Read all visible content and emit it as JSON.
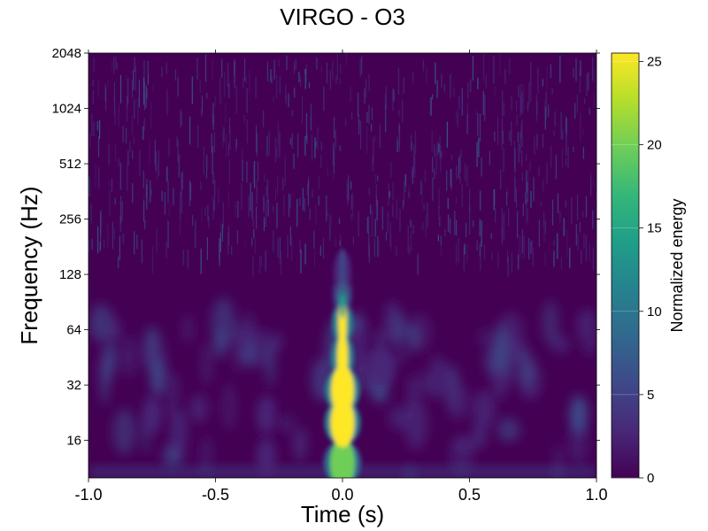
{
  "chart_data": {
    "type": "heatmap",
    "title": "VIRGO - O3",
    "xlabel": "Time (s)",
    "ylabel": "Frequency (Hz)",
    "xlim": [
      -1.0,
      1.0
    ],
    "x_ticks": [
      -1.0,
      -0.5,
      0.0,
      0.5,
      1.0
    ],
    "x_tick_labels": [
      "-1.0",
      "-0.5",
      "0.0",
      "0.5",
      "1.0"
    ],
    "yscale": "log2",
    "ylim": [
      10,
      2048
    ],
    "y_ticks": [
      16,
      32,
      64,
      128,
      256,
      512,
      1024,
      2048
    ],
    "y_tick_labels": [
      "16",
      "32",
      "64",
      "128",
      "256",
      "512",
      "1024",
      "2048"
    ],
    "colorbar": {
      "label": "Normalized energy",
      "range": [
        0,
        25.5
      ],
      "ticks": [
        0,
        5,
        10,
        15,
        20,
        25
      ],
      "tick_labels": [
        "0",
        "5",
        "10",
        "15",
        "20",
        "25"
      ],
      "colormap": [
        "#440154",
        "#482878",
        "#3e4989",
        "#31688e",
        "#26828e",
        "#1f9e89",
        "#35b779",
        "#6ece58",
        "#b5de2b",
        "#fde725"
      ]
    },
    "grid": false,
    "features": [
      {
        "name": "chirp",
        "time_s": 0.0,
        "freq_hz": [
          12,
          20,
          30,
          45,
          70,
          100,
          130
        ],
        "energy": [
          20,
          25.5,
          25.5,
          25.5,
          25.5,
          15,
          6
        ]
      },
      {
        "name": "blob",
        "time_s": 0.93,
        "freq_hz": 22,
        "energy": 6
      },
      {
        "name": "blob",
        "time_s": -0.75,
        "freq_hz": 22,
        "energy": 4
      },
      {
        "name": "blob",
        "time_s": -0.3,
        "freq_hz": 22,
        "energy": 4
      },
      {
        "name": "blob",
        "time_s": -0.3,
        "freq_hz": 13,
        "energy": 3
      },
      {
        "name": "blob",
        "time_s": 0.15,
        "freq_hz": 40,
        "energy": 3
      }
    ]
  }
}
